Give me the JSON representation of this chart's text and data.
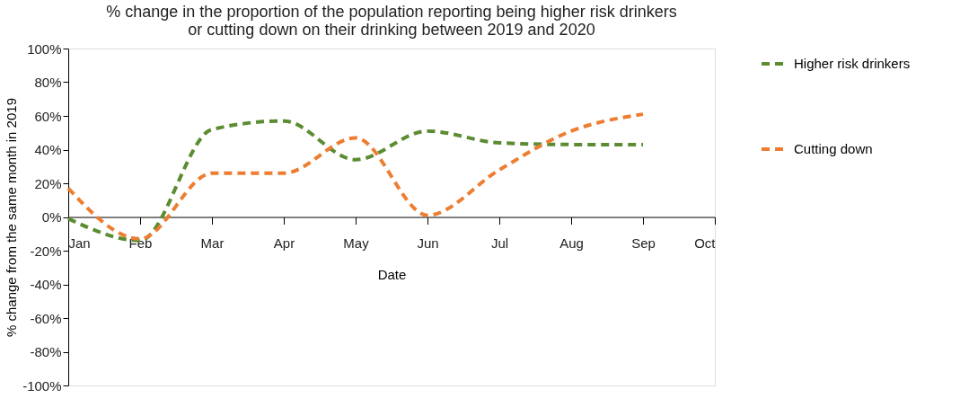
{
  "chart_data": {
    "type": "line",
    "title": "% change in the proportion of the population reporting being higher risk drinkers or cutting down on their drinking between 2019 and 2020",
    "xlabel": "Date",
    "ylabel": "% change from the same month in 2019",
    "categories": [
      "Jan",
      "Feb",
      "Mar",
      "Apr",
      "May",
      "Jun",
      "Jul",
      "Aug",
      "Sep",
      "Oct"
    ],
    "series": [
      {
        "name": "Higher risk drinkers",
        "color": "#5b8c32",
        "values": [
          -1,
          -14,
          52,
          57,
          34,
          51,
          44,
          43,
          43,
          null
        ]
      },
      {
        "name": "Cutting down",
        "color": "#ed7d31",
        "values": [
          17,
          -13,
          26,
          26,
          47,
          1,
          28,
          51,
          61,
          null
        ]
      }
    ],
    "ylim": [
      -100,
      100
    ],
    "yticks": [
      {
        "value": -100,
        "label": "-100%"
      },
      {
        "value": -80,
        "label": "-80%"
      },
      {
        "value": -60,
        "label": "-60%"
      },
      {
        "value": -40,
        "label": "-40%"
      },
      {
        "value": -20,
        "label": "-20%"
      },
      {
        "value": 0,
        "label": "0%"
      },
      {
        "value": 20,
        "label": "20%"
      },
      {
        "value": 40,
        "label": "40%"
      },
      {
        "value": 60,
        "label": "60%"
      },
      {
        "value": 80,
        "label": "80%"
      },
      {
        "value": 100,
        "label": "100%"
      }
    ],
    "grid": false,
    "legend": "right",
    "line_style": "dashed"
  }
}
